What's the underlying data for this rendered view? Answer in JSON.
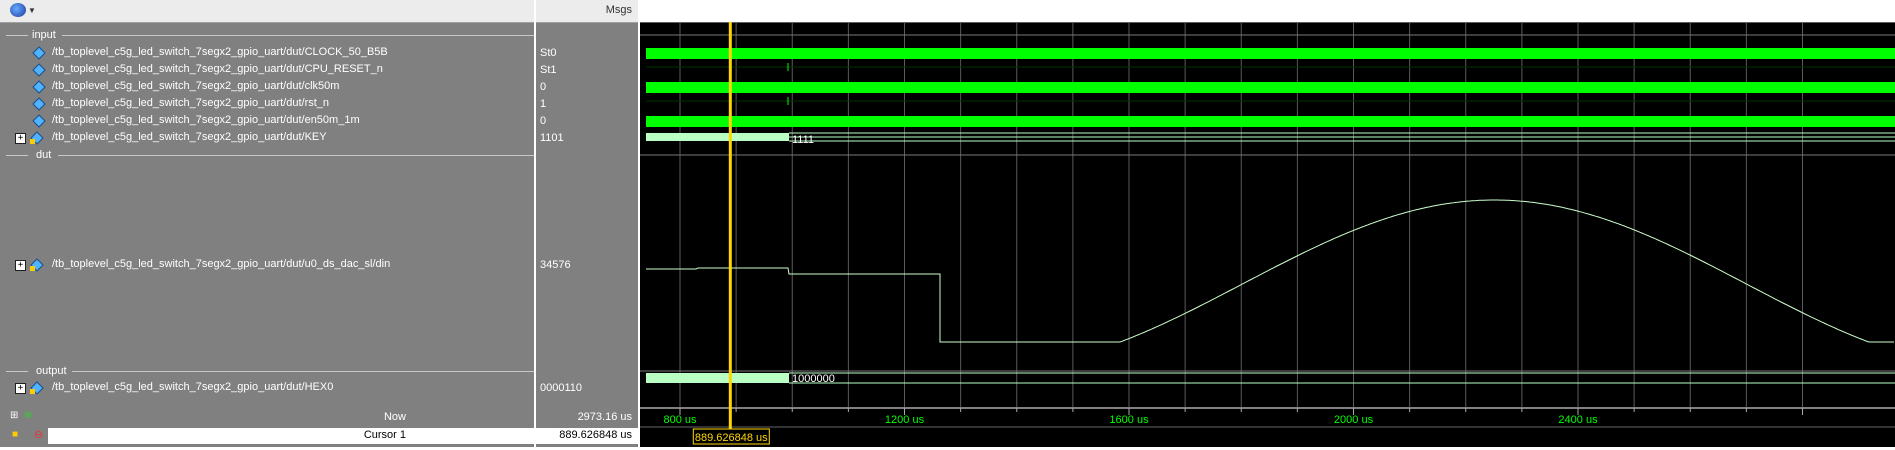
{
  "header": {
    "msgs_label": "Msgs"
  },
  "groups": {
    "input": "input",
    "dut": "dut",
    "output": "output"
  },
  "signals": [
    {
      "name": "/tb_toplevel_c5g_led_switch_7segx2_gpio_uart/dut/CLOCK_50_B5B",
      "value": "St0"
    },
    {
      "name": "/tb_toplevel_c5g_led_switch_7segx2_gpio_uart/dut/CPU_RESET_n",
      "value": "St1"
    },
    {
      "name": "/tb_toplevel_c5g_led_switch_7segx2_gpio_uart/dut/clk50m",
      "value": "0"
    },
    {
      "name": "/tb_toplevel_c5g_led_switch_7segx2_gpio_uart/dut/rst_n",
      "value": "1"
    },
    {
      "name": "/tb_toplevel_c5g_led_switch_7segx2_gpio_uart/dut/en50m_1m",
      "value": "0"
    },
    {
      "name": "/tb_toplevel_c5g_led_switch_7segx2_gpio_uart/dut/KEY",
      "value": "1101"
    },
    {
      "name": "/tb_toplevel_c5g_led_switch_7segx2_gpio_uart/dut/u0_ds_dac_sl/din",
      "value": "34576"
    },
    {
      "name": "/tb_toplevel_c5g_led_switch_7segx2_gpio_uart/dut/HEX0",
      "value": "0000110"
    }
  ],
  "wave_labels": {
    "key_after": "1111",
    "hex0_after": "1000000"
  },
  "status": {
    "now_label": "Now",
    "now_value": "2973.16 us",
    "cursor_label": "Cursor 1",
    "cursor_value": "889.626848 us",
    "cursor_flag": "889.626848 us"
  },
  "timeline": {
    "ticks": [
      "800 us",
      "1200 us",
      "1600 us",
      "2000 us",
      "2400 us"
    ],
    "tick_times_us": [
      800,
      1200,
      1600,
      2000,
      2400
    ],
    "cursor_time_us": 889.626848
  },
  "colors": {
    "wave_green": "#00ff00",
    "bus_green": "#b9ffc3",
    "analog": "#ccffcc",
    "cursor": "#ffd700",
    "tick_text": "#00ff00"
  }
}
